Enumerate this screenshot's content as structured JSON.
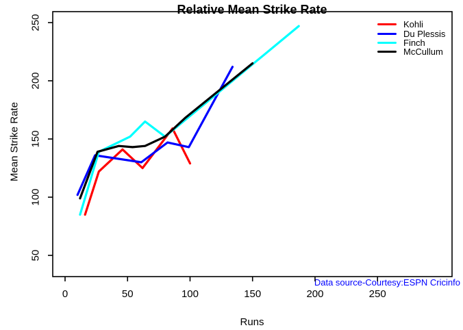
{
  "chart_data": {
    "type": "line",
    "title": "Relative Mean Strike Rate",
    "xlabel": "Runs",
    "ylabel": "Mean Strike Rate",
    "x_ticks": [
      0,
      50,
      100,
      150,
      200,
      250
    ],
    "y_ticks": [
      50,
      100,
      150,
      200,
      250
    ],
    "xlim": [
      -10,
      310
    ],
    "ylim": [
      32,
      259
    ],
    "grid": false,
    "legend_position": "top-right",
    "annotation": "Data source-Courtesy:ESPN Cricinfo",
    "annotation_color": "#0000FF",
    "axis_color": "#000000",
    "background_color": "#FFFFFF",
    "line_width": 3.2,
    "series": [
      {
        "name": "Kohli",
        "color": "#FF0000",
        "points": [
          [
            16,
            85
          ],
          [
            27,
            122
          ],
          [
            46,
            141
          ],
          [
            62,
            125
          ],
          [
            86,
            159
          ],
          [
            100,
            129
          ]
        ]
      },
      {
        "name": "Du Plessis",
        "color": "#0000FF",
        "points": [
          [
            10,
            102
          ],
          [
            24,
            136
          ],
          [
            61,
            130
          ],
          [
            82,
            147
          ],
          [
            99,
            143
          ],
          [
            134,
            212
          ]
        ]
      },
      {
        "name": "Finch",
        "color": "#00FFFF",
        "points": [
          [
            12,
            85
          ],
          [
            27,
            139
          ],
          [
            52,
            152
          ],
          [
            64,
            165
          ],
          [
            80,
            152
          ],
          [
            187,
            247
          ]
        ]
      },
      {
        "name": "McCullum",
        "color": "#000000",
        "points": [
          [
            12,
            99
          ],
          [
            26,
            139
          ],
          [
            43,
            144
          ],
          [
            54,
            143
          ],
          [
            64,
            144
          ],
          [
            80,
            152
          ],
          [
            96,
            168
          ],
          [
            150,
            215
          ]
        ]
      }
    ]
  }
}
